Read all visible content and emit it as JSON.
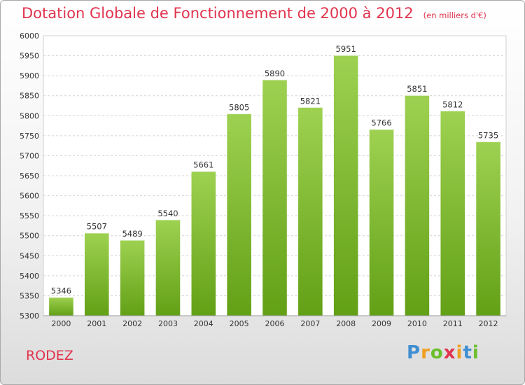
{
  "header": {
    "title": "Dotation Globale de Fonctionnement de 2000 à 2012",
    "subtitle": "(en milliers d'€)"
  },
  "footer": {
    "city": "RODEZ",
    "brand": "Proxiti"
  },
  "colors": {
    "title": "#e0344e",
    "bar_top": "#9ed151",
    "bar_bottom": "#62a016"
  },
  "chart_data": {
    "type": "bar",
    "title": "Dotation Globale de Fonctionnement de 2000 à 2012",
    "subtitle": "(en milliers d'€)",
    "xlabel": "",
    "ylabel": "",
    "categories": [
      "2000",
      "2001",
      "2002",
      "2003",
      "2004",
      "2005",
      "2006",
      "2007",
      "2008",
      "2009",
      "2010",
      "2011",
      "2012"
    ],
    "values": [
      5346,
      5507,
      5489,
      5540,
      5661,
      5805,
      5890,
      5821,
      5951,
      5766,
      5851,
      5812,
      5735
    ],
    "ylim": [
      5300,
      6000
    ],
    "yticks": [
      5300,
      5350,
      5400,
      5450,
      5500,
      5550,
      5600,
      5650,
      5700,
      5750,
      5800,
      5850,
      5900,
      5950,
      6000
    ],
    "grid": true,
    "legend": "none"
  }
}
